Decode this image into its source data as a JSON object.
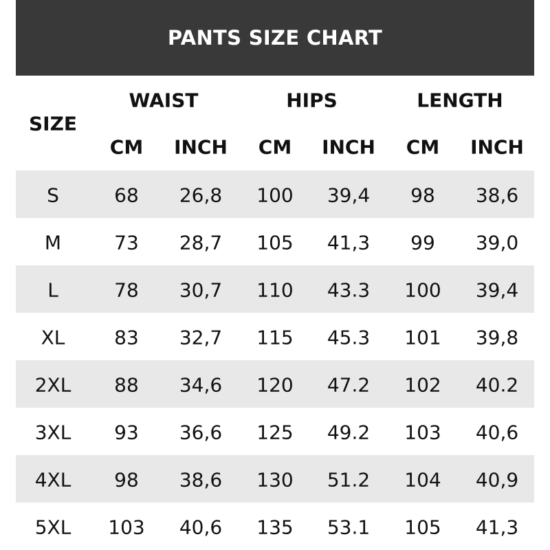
{
  "title": "PANTS SIZE CHART",
  "header": {
    "size": "SIZE",
    "groups": [
      "WAIST",
      "HIPS",
      "LENGTH"
    ],
    "units": [
      "CM",
      "INCH",
      "CM",
      "INCH",
      "CM",
      "INCH"
    ]
  },
  "row_shade_color": "#e8e8e8",
  "header_bg_color": "#3a3939",
  "rows": [
    [
      "S",
      "68",
      "26,8",
      "100",
      "39,4",
      "98",
      "38,6"
    ],
    [
      "M",
      "73",
      "28,7",
      "105",
      "41,3",
      "99",
      "39,0"
    ],
    [
      "L",
      "78",
      "30,7",
      "110",
      "43.3",
      "100",
      "39,4"
    ],
    [
      "XL",
      "83",
      "32,7",
      "115",
      "45.3",
      "101",
      "39,8"
    ],
    [
      "2XL",
      "88",
      "34,6",
      "120",
      "47.2",
      "102",
      "40.2"
    ],
    [
      "3XL",
      "93",
      "36,6",
      "125",
      "49.2",
      "103",
      "40,6"
    ],
    [
      "4XL",
      "98",
      "38,6",
      "130",
      "51.2",
      "104",
      "40,9"
    ],
    [
      "5XL",
      "103",
      "40,6",
      "135",
      "53.1",
      "105",
      "41,3"
    ]
  ]
}
